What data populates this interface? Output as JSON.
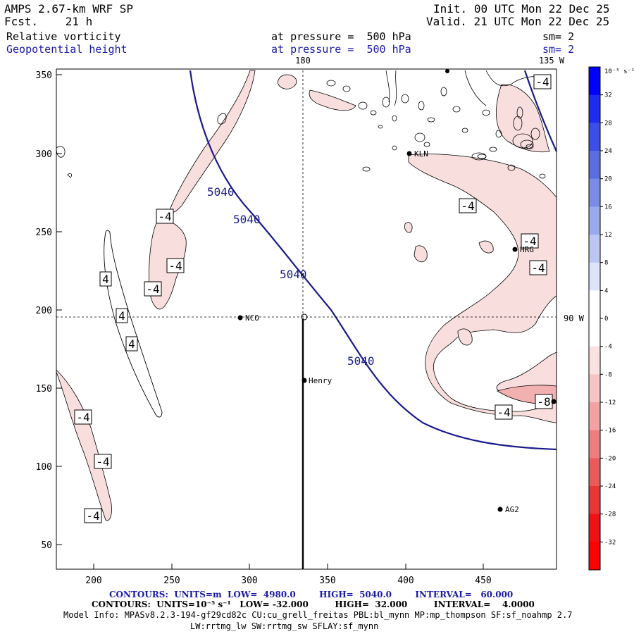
{
  "header": {
    "model": "AMPS 2.67-km WRF SP",
    "fcst_label": "Fcst.",
    "fcst_value": "21 h",
    "init_label": "Init.",
    "init_value": "00 UTC Mon 22 Dec 25",
    "valid_label": "Valid.",
    "valid_value": "21 UTC Mon 22 Dec 25",
    "field1": "Relative vorticity",
    "field2": "Geopotential height",
    "pressure1": "at pressure =  500 hPa",
    "pressure2": "at pressure =  500 hPa",
    "sm1": "sm= 2",
    "sm2": "sm= 2"
  },
  "map": {
    "top_lon_labels": [
      "180",
      "135 W"
    ],
    "right_lon_label": "90 W",
    "x_ticks": [
      "200",
      "250",
      "300",
      "350",
      "400",
      "450"
    ],
    "y_ticks": [
      "350",
      "300",
      "250",
      "200",
      "150",
      "100",
      "50"
    ],
    "height_contour_label": "5040",
    "vort_labels": [
      "-4",
      "-4",
      "-4",
      "-4",
      "-4",
      "-4",
      "-4",
      "-4",
      "-4",
      "-4",
      "-4",
      "-8",
      "4",
      "4",
      "4"
    ],
    "stations": [
      "KLN",
      "HRG",
      "NCO",
      "Henry",
      "AG2"
    ],
    "colors": {
      "positive_fill": "#f9dede",
      "height_line": "#1a1a8c",
      "map_line": "#000000"
    }
  },
  "colorbar": {
    "units": "10⁻⁵ s⁻¹",
    "labels": [
      "32",
      "28",
      "24",
      "20",
      "16",
      "12",
      "8",
      "4",
      "0",
      "-4",
      "-8",
      "-12",
      "-16",
      "-20",
      "-24",
      "-28",
      "-32"
    ],
    "colors_top_to_bottom": [
      "#0000ff",
      "#1f2cf0",
      "#3d4ee8",
      "#5a6ee0",
      "#7b8ce6",
      "#9aa8ec",
      "#bcc6f3",
      "#dde3f8",
      "#ffffff",
      "#ffffff",
      "#fbe2e2",
      "#f7c4c4",
      "#f2a2a2",
      "#ee7e7e",
      "#ea5a5a",
      "#e63636",
      "#ee1212",
      "#ff0000"
    ]
  },
  "footer": {
    "line1": "CONTOURS:  UNITS=m  LOW=  4980.0        HIGH=  5040.0        INTERVAL=   60.000",
    "line2": "CONTOURS:  UNITS=10⁻⁵ s⁻¹   LOW= -32.000         HIGH=  32.000         INTERVAL=    4.0000",
    "line3": "Model Info: MPASv8.2.3-194-gf29cd82c CU:cu_grell_freitas PBL:bl_mynn MP:mp_thompson SF:sf_noahmp 2.7",
    "line4": "LW:rrtmg_lw SW:rrtmg_sw SFLAY:sf_mynn"
  }
}
